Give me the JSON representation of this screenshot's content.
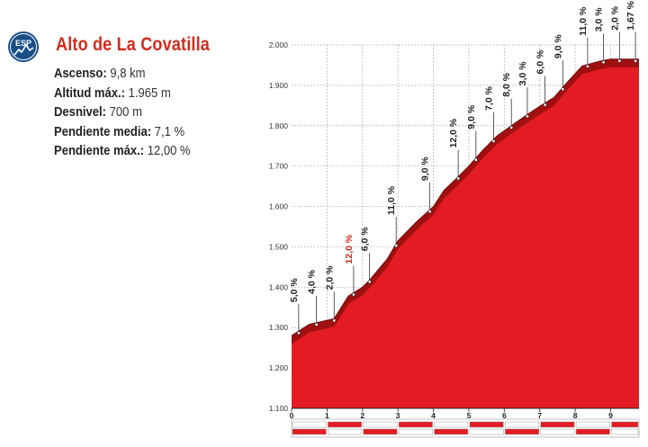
{
  "header": {
    "badge_text": "ESP",
    "title": "Alto de La Covatilla",
    "colors": {
      "title": "#d42a1e",
      "badge": "#1a4f86"
    }
  },
  "stats": [
    {
      "label": "Ascenso:",
      "value": "9,8 km"
    },
    {
      "label": "Altitud máx.:",
      "value": "1.965 m"
    },
    {
      "label": "Desnivel:",
      "value": "700 m"
    },
    {
      "label": "Pendiente media:",
      "value": "7,1 %"
    },
    {
      "label": "Pendiente máx.:",
      "value": "12,00 %"
    }
  ],
  "chart_data": {
    "type": "area",
    "x_unit": "km",
    "y_unit": "m",
    "xlim": [
      0,
      9.8
    ],
    "ylim": [
      1100,
      2000
    ],
    "y_ticks": [
      "1.100",
      "1.200",
      "1.300",
      "1.400",
      "1.500",
      "1.600",
      "1.700",
      "1.800",
      "1.900",
      "2.000"
    ],
    "x_ticks": [
      "0",
      "1",
      "2",
      "3",
      "4",
      "5",
      "6",
      "7",
      "8",
      "9"
    ],
    "profile": {
      "x": [
        0,
        0.5,
        1.2,
        1.6,
        2.0,
        2.2,
        2.7,
        3.0,
        3.5,
        4.0,
        4.3,
        4.6,
        5.0,
        5.4,
        5.8,
        6.2,
        6.6,
        7.0,
        7.4,
        7.8,
        8.2,
        8.7,
        9.0,
        9.8
      ],
      "y": [
        1280,
        1308,
        1322,
        1378,
        1400,
        1418,
        1470,
        1515,
        1560,
        1600,
        1640,
        1665,
        1700,
        1740,
        1775,
        1800,
        1825,
        1848,
        1870,
        1910,
        1948,
        1960,
        1965,
        1965
      ]
    },
    "segments": [
      {
        "x": 0.2,
        "label": "5,0 %",
        "color": "#222222"
      },
      {
        "x": 0.7,
        "label": "4,0 %",
        "color": "#222222"
      },
      {
        "x": 1.2,
        "label": "2,0 %",
        "color": "#222222"
      },
      {
        "x": 1.75,
        "label": "12,0 %",
        "color": "#d42a1e"
      },
      {
        "x": 2.2,
        "label": "6,0 %",
        "color": "#222222"
      },
      {
        "x": 2.95,
        "label": "11,0 %",
        "color": "#222222"
      },
      {
        "x": 3.9,
        "label": "9,0 %",
        "color": "#222222"
      },
      {
        "x": 4.7,
        "label": "12,0 %",
        "color": "#222222"
      },
      {
        "x": 5.2,
        "label": "9,0 %",
        "color": "#222222"
      },
      {
        "x": 5.7,
        "label": "7,0 %",
        "color": "#222222"
      },
      {
        "x": 6.2,
        "label": "8,0 %",
        "color": "#222222"
      },
      {
        "x": 6.65,
        "label": "3,0 %",
        "color": "#222222"
      },
      {
        "x": 7.15,
        "label": "6,0 %",
        "color": "#222222"
      },
      {
        "x": 7.65,
        "label": "9,0 %",
        "color": "#222222"
      },
      {
        "x": 8.35,
        "label": "11,0 %",
        "color": "#222222"
      },
      {
        "x": 8.8,
        "label": "3,0 %",
        "color": "#222222"
      },
      {
        "x": 9.25,
        "label": "2,0 %",
        "color": "#222222"
      },
      {
        "x": 9.7,
        "label": "1,67 %",
        "color": "#222222"
      }
    ],
    "grid": true,
    "colors": {
      "fill": "#e31b23",
      "edge": "#a01010",
      "grid": "#999999"
    }
  }
}
